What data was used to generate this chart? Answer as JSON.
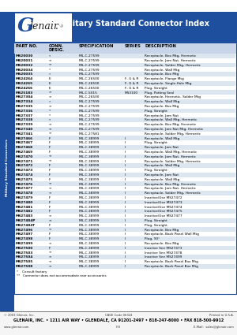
{
  "title": "Military Standard Connector Index",
  "header_bg": "#1e4f9f",
  "header_text_color": "#ffffff",
  "col_header_bg": "#c8d4e8",
  "row_bg_even": "#dce6f0",
  "row_bg_odd": "#ffffff",
  "table_border": "#1e4f9f",
  "side_bg": "#1e4f9f",
  "side_text": "Military Standard Connectors",
  "rows": [
    [
      "MS20030",
      "*",
      "MIL-C-27599",
      "",
      "Receptacle, Box Mtg, Hermetic"
    ],
    [
      "MS20031",
      "**",
      "MIL-C-27599",
      "",
      "Receptacle, Jam Nut, Hermetic"
    ],
    [
      "MS20032",
      "**",
      "MIL-C-27599",
      "",
      "Receptacle, Solder Mtg, Hermetic"
    ],
    [
      "MS20034",
      "*",
      "MIL-C-27599",
      "",
      "Receptacle, Wall Mtg"
    ],
    [
      "MS20035",
      "*",
      "MIL-C-27599",
      "",
      "Receptacle, Box Mtg"
    ],
    [
      "MS24264",
      "E",
      "MIL-C-26500",
      "F, G & R",
      "Receptacle, Flange Mtg"
    ],
    [
      "MS24265",
      "E",
      "MIL-C-26500",
      "F, G & R",
      "Receptacle, Single-Hole Mtg"
    ],
    [
      "MS24266",
      "E",
      "MIL-C-26500",
      "F, G & R",
      "Plug, Straight"
    ],
    [
      "MS25183",
      "**",
      "MIL-C-5015",
      "MS3100",
      "Plug, Potting Seal"
    ],
    [
      "MS27304",
      "**",
      "MIL-C-26500",
      "",
      "Receptacle, Hermetic, Solder Mtg"
    ],
    [
      "MS27334",
      "*",
      "MIL-C-27599",
      "",
      "Receptacle, Wall Mtg"
    ],
    [
      "MS27335",
      "**",
      "MIL-C-27599",
      "",
      "Receptacle, Box Mtg"
    ],
    [
      "MS27336",
      "*",
      "MIL-C-27599",
      "",
      "Plug, Straight"
    ],
    [
      "MS27337",
      "*",
      "MIL-C-27599",
      "",
      "Receptacle, Jam Nut"
    ],
    [
      "MS27338",
      "*",
      "MIL-C-27599",
      "",
      "Receptacle, Wall Mtg, Hermetic"
    ],
    [
      "MS27339",
      "**",
      "MIL-C-27599",
      "",
      "Receptacle, Box Mtg, Hermetic"
    ],
    [
      "MS27340",
      "**",
      "MIL-C-27599",
      "",
      "Receptacle, Jam Nut Mtg, Hermetic"
    ],
    [
      "MS27341",
      "**",
      "MIL-C-27581",
      "",
      "Receptacle, Solder Mtg, Hermetic"
    ],
    [
      "MS27466",
      "F",
      "MIL-C-38999",
      "I",
      "Receptacle, Wall Mtg"
    ],
    [
      "MS27467",
      "F",
      "MIL-C-38999",
      "I",
      "Plug, Straight"
    ],
    [
      "MS27468",
      "F",
      "MIL-C-38999",
      "I",
      "Receptacle, Jam Nut"
    ],
    [
      "MS27469",
      "F",
      "MIL-C-38999",
      "I",
      "Receptacle, Wall Mtg, Hermetic"
    ],
    [
      "MS27470",
      "**",
      "MIL-C-38999",
      "I",
      "Receptacle, Jam Nut, Hermetic"
    ],
    [
      "MS27471",
      "**",
      "MIL-C-38999",
      "I",
      "Receptacle, Solder Mtg, Hermetic"
    ],
    [
      "MS27472",
      "F",
      "MIL-C-38999",
      "I",
      "Receptacle, Wall Mtg"
    ],
    [
      "MS27473",
      "F",
      "MIL-C-38999",
      "I",
      "Plug, Straight"
    ],
    [
      "MS27474",
      "F",
      "MIL-C-38999",
      "I",
      "Receptacle, Jam Nut"
    ],
    [
      "MS27475",
      "F",
      "MIL-C-38999",
      "I",
      "Receptacle, Wall Mtg"
    ],
    [
      "MS27476",
      "**",
      "MIL-C-38999",
      "I",
      "Receptacle, Box Mtg, Hermetic"
    ],
    [
      "MS27477",
      "**",
      "MIL-C-38999",
      "I",
      "Receptacle, Jam Nut, Hermetic"
    ],
    [
      "MS27478",
      "**",
      "MIL-C-38999",
      "I",
      "Receptacle, Solder Mtg, Hermetic"
    ],
    [
      "MS27479",
      "F",
      "MIL-C-38999",
      "I",
      "Inactive/Use MS27472"
    ],
    [
      "MS27480",
      "F",
      "MIL-C-38999",
      "I",
      "Inactive/Use MS27473"
    ],
    [
      "MS27481",
      "F",
      "MIL-C-38999",
      "I",
      "Inactive/Use MS27474"
    ],
    [
      "MS27482",
      "F",
      "MIL-C-38999",
      "I",
      "Inactive/Use MS27475"
    ],
    [
      "MS27483",
      "**",
      "MIL-C-38999",
      "I",
      "Inactive/Use MS27477"
    ],
    [
      "MS27484P",
      "**",
      "MIL-C-38999",
      "I",
      "Plug, Straight"
    ],
    [
      "MS27484T",
      "F",
      "MIL-C-38999",
      "I",
      "Plug, Straight"
    ],
    [
      "MS27496",
      "**",
      "MIL-C-38999",
      "I",
      "Receptacle, Box Mtg"
    ],
    [
      "MS27497",
      "F",
      "MIL-C-38999",
      "I",
      "Receptacle, Back Panel Wall Mtg"
    ],
    [
      "MS27498",
      "F",
      "MIL-C-38999",
      "I",
      "Plug, 90°"
    ],
    [
      "MS27499",
      "**",
      "MIL-C-38999",
      "I",
      "Receptacle, Box Mtg"
    ],
    [
      "MS27500",
      "F",
      "MIL-C-38999",
      "I",
      "Inactive See MS27473"
    ],
    [
      "MS27503",
      "**",
      "MIL-C-38999",
      "I",
      "Inactive See MS27478"
    ],
    [
      "MS27504",
      "**",
      "MIL-C-38999",
      "I",
      "Inactive See MS27499"
    ],
    [
      "MS27505",
      "**",
      "MIL-C-38999",
      "I",
      "Receptacle, Back Panel Box Mtg"
    ],
    [
      "MS27508",
      "**",
      "MIL-C-38999",
      "I",
      "Receptacle, Back Panel Box Mtg"
    ]
  ],
  "footnote1": "*    Consult factory",
  "footnote2": "**   Connector does not accommodate rear accessories",
  "footer_copy": "© 2003 Glenair, Inc.",
  "footer_cage": "CAGE Code 06324",
  "footer_printed": "Printed in U.S.A.",
  "footer_addr": "GLENAIR, INC. • 1211 AIR WAY • GLENDALE, CA 91201-2497 • 818-247-6000 • FAX 818-500-9912",
  "footer_web": "www.glenair.com",
  "footer_page": "F-8",
  "footer_email": "E-Mail:  sales@glenair.com"
}
